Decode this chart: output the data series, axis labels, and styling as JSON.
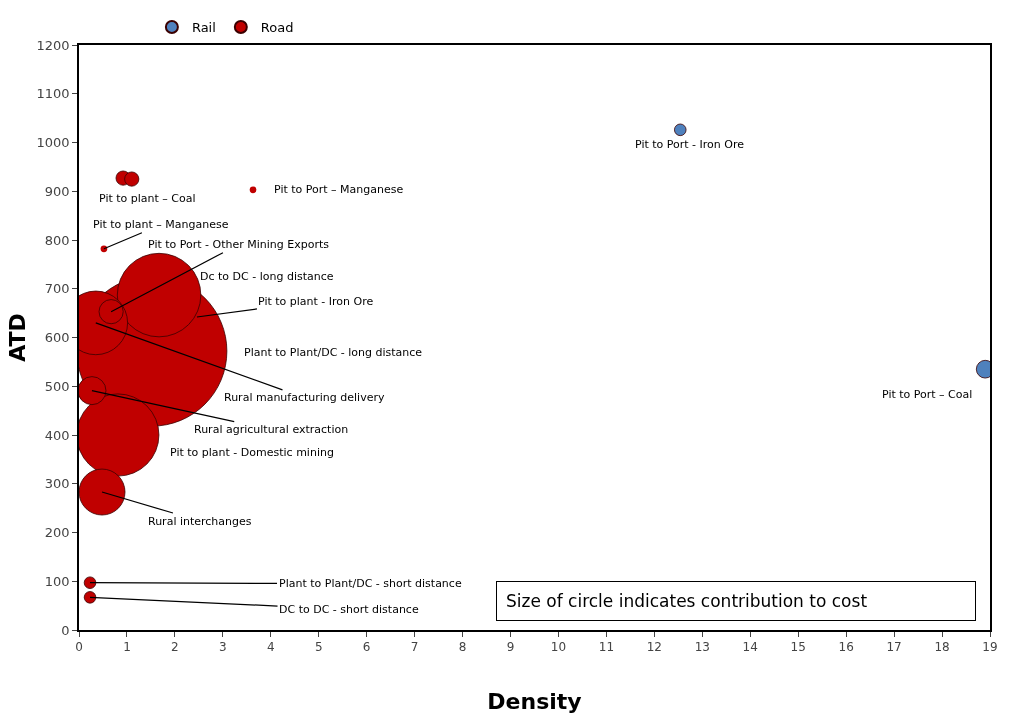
{
  "chart_data": {
    "type": "bubble",
    "xlabel": "Density",
    "ylabel": "ATD",
    "xlim": [
      0,
      19
    ],
    "xticks": [
      0,
      1,
      2,
      3,
      4,
      5,
      6,
      7,
      8,
      9,
      10,
      11,
      12,
      13,
      14,
      15,
      16,
      17,
      18,
      19
    ],
    "ylim": [
      0,
      1200
    ],
    "yticks": [
      0,
      100,
      200,
      300,
      400,
      500,
      600,
      700,
      800,
      900,
      1000,
      1100,
      1200
    ],
    "grid": false,
    "legend": "top",
    "series": [
      {
        "name": "Rail",
        "color": "#4f81bd",
        "x": [
          18.9,
          12.54
        ],
        "values": [
          535,
          1026
        ],
        "sizes": [
          0.014,
          0.006
        ]
      },
      {
        "name": "Road",
        "color": "#c00000",
        "x": [
          1.52,
          1.67,
          0.81,
          0.35,
          0.48,
          0.27,
          0.67,
          0.92,
          1.1,
          0.23,
          0.23,
          0.52,
          3.63
        ],
        "values": [
          572,
          687,
          400,
          630,
          283,
          491,
          653,
          927,
          925,
          97,
          67,
          782,
          903
        ],
        "sizes": [
          1,
          0.31,
          0.3,
          0.18,
          0.094,
          0.035,
          0.026,
          0.009,
          0.009,
          0.006,
          0.006,
          0.002,
          0.002
        ]
      }
    ],
    "annotations": [
      "Plant to Plant/DC - long distance",
      "Dc to DC - long distance",
      {
        "text": "Rural manufacturing delivery",
        "x": 0.35,
        "y": 630
      },
      "Pit to plant - Domestic mining",
      {
        "text": "Rural interchanges",
        "x": 0.48,
        "y": 283
      },
      {
        "text": "Rural agricultural extraction",
        "x": 0.27,
        "y": 491
      },
      {
        "text": "Pit to Port - Other Mining Exports",
        "x": 0.67,
        "y": 653
      },
      {
        "text": "Pit to plant - Iron Ore",
        "x": 2.46,
        "y": 642
      },
      {
        "text": "Pit to plant – Coal",
        "x": 1.0,
        "y": 926
      },
      {
        "text": "Pit to plant – Manganese",
        "x": 0.52,
        "y": 782
      },
      {
        "text": "Pit to Port – Manganese",
        "x": 3.63,
        "y": 903
      },
      {
        "text": "Pit to Port - Iron Ore",
        "x": 12.54,
        "y": 1026
      },
      {
        "text": "Pit to Port – Coal",
        "x": 18.9,
        "y": 535
      },
      {
        "text": "Plant to Plant/DC - short distance",
        "x": 0.23,
        "y": 97
      },
      {
        "text": "DC to DC - short distance",
        "x": 0.23,
        "y": 67
      },
      "Size of circle indicates contribution to cost"
    ]
  }
}
